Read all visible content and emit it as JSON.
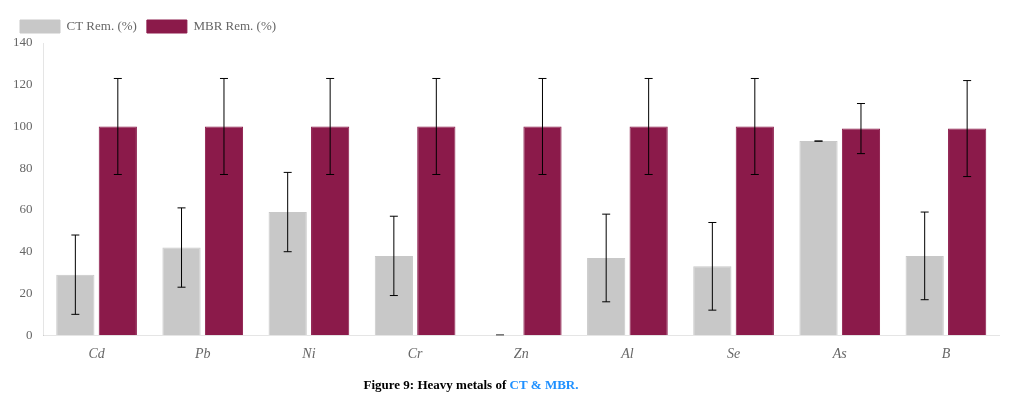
{
  "chart_data": {
    "type": "bar",
    "categories": [
      "Cd",
      "Pb",
      "Ni",
      "Cr",
      "Zn",
      "Al",
      "Se",
      "As",
      "B"
    ],
    "series": [
      {
        "name": "CT Rem. (%)",
        "color": "#c8c8c8",
        "values": [
          29,
          42,
          59,
          38,
          0,
          37,
          33,
          93,
          38
        ],
        "errors": [
          19,
          19,
          19,
          19,
          0,
          21,
          21,
          0,
          21
        ]
      },
      {
        "name": "MBR Rem. (%)",
        "color": "#8b1a4a",
        "values": [
          100,
          100,
          100,
          100,
          100,
          100,
          100,
          99,
          99
        ],
        "errors": [
          23,
          23,
          23,
          23,
          23,
          23,
          23,
          12,
          23
        ]
      }
    ],
    "ylim": [
      0,
      140
    ],
    "yticks": [
      0,
      20,
      40,
      60,
      80,
      100,
      120,
      140
    ],
    "grid": false,
    "legend": "upper left",
    "annotations": [
      {
        "text": "Figure 9: Heavy metals of ",
        "color": "#000000"
      },
      {
        "text": "CT & MBR.",
        "color": "#1e90ff"
      }
    ]
  }
}
